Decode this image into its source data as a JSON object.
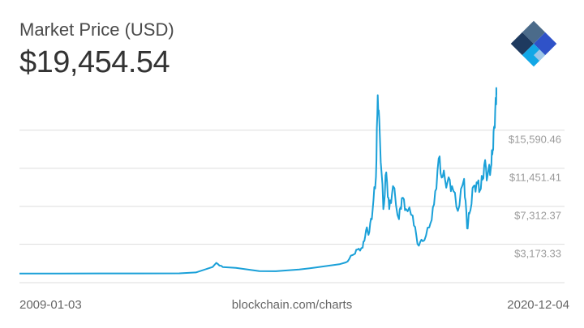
{
  "header": {
    "title": "Market Price (USD)",
    "current_price": "$19,454.54"
  },
  "footer": {
    "start_date": "2009-01-03",
    "source": "blockchain.com/charts",
    "end_date": "2020-12-04"
  },
  "logo": {
    "icon": "blockchain-logo-icon",
    "colors": [
      "#4b6b8a",
      "#1e3a5f",
      "#2f52c8",
      "#12a7e6",
      "#9ec7e8"
    ]
  },
  "colors": {
    "line": "#1aa0d8",
    "grid": "#dddddd",
    "tick_label": "#9b9b9b"
  },
  "chart_data": {
    "type": "line",
    "title": "Market Price (USD)",
    "xlabel": "",
    "ylabel": "",
    "xlim": [
      "2009-01-03",
      "2020-12-04"
    ],
    "ylim": [
      -1000,
      20500
    ],
    "grid": true,
    "y_axis_position": "right",
    "yticks": [
      3173.33,
      7312.37,
      11451.41,
      15590.46
    ],
    "ytick_labels": [
      "$3,173.33",
      "$7,312.37",
      "$11,451.41",
      "$15,590.46"
    ],
    "series": [
      {
        "x": [
          "2009-01-03",
          "2010-01-01",
          "2011-01-01",
          "2012-01-01",
          "2013-01-01",
          "2013-06-01",
          "2013-11-01",
          "2013-12-04",
          "2014-02-01",
          "2014-06-01",
          "2015-01-01",
          "2015-06-01",
          "2016-01-01",
          "2016-06-01",
          "2017-01-01",
          "2017-03-01",
          "2017-05-01",
          "2017-06-15",
          "2017-08-01",
          "2017-09-01",
          "2017-10-01",
          "2017-11-01",
          "2017-12-01",
          "2017-12-17",
          "2018-01-05",
          "2018-02-06",
          "2018-03-05",
          "2018-04-01",
          "2018-05-05",
          "2018-06-29",
          "2018-07-25",
          "2018-09-01",
          "2018-11-01",
          "2018-12-15",
          "2019-02-01",
          "2019-04-01",
          "2019-05-15",
          "2019-06-26",
          "2019-08-01",
          "2019-09-15",
          "2019-10-26",
          "2019-12-18",
          "2020-02-13",
          "2020-03-12",
          "2020-04-01",
          "2020-05-10",
          "2020-06-15",
          "2020-07-15",
          "2020-08-15",
          "2020-09-15",
          "2020-10-15",
          "2020-11-01",
          "2020-11-15",
          "2020-12-01",
          "2020-12-04"
        ],
        "y": [
          0,
          0,
          0.3,
          5,
          13,
          110,
          700,
          1150,
          700,
          600,
          250,
          240,
          430,
          650,
          1000,
          1200,
          2000,
          2600,
          2800,
          4700,
          4500,
          7000,
          10500,
          19400,
          15000,
          7000,
          11000,
          7000,
          9500,
          5900,
          8200,
          7000,
          6300,
          3200,
          3500,
          5000,
          7500,
          12500,
          10500,
          10000,
          9500,
          6800,
          10300,
          4900,
          6500,
          9500,
          9800,
          9200,
          11800,
          10700,
          11500,
          13500,
          16000,
          19000,
          19454.54
        ]
      }
    ]
  }
}
